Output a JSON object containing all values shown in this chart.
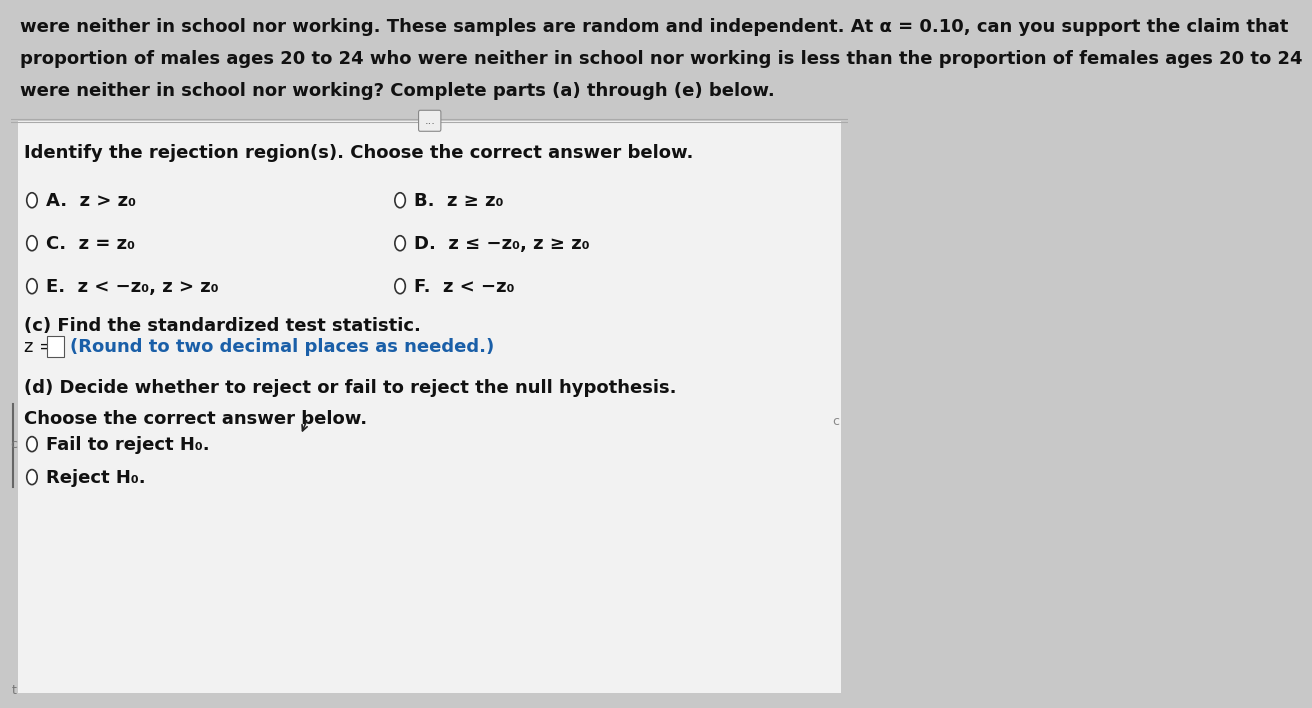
{
  "bg_color": "#c8c8c8",
  "white_area_color": "#f0f0f0",
  "header_bg": "#c8c8c8",
  "header_text": [
    "were neither in school nor working. These samples are random and independent. At α = 0.10, can you support the claim that",
    "proportion of males ages 20 to 24 who were neither in school nor working is less than the proportion of females ages 20 to 24",
    "were neither in school nor working? Complete parts (a) through (e) below."
  ],
  "section_label": "Identify the rejection region(s). Choose the correct answer below.",
  "options": [
    {
      "id": "A",
      "text": "z > z₀",
      "row": 0,
      "col": 0
    },
    {
      "id": "B",
      "text": "z ≥ z₀",
      "row": 0,
      "col": 1
    },
    {
      "id": "C",
      "text": "z = z₀",
      "row": 1,
      "col": 0
    },
    {
      "id": "D",
      "text": "z ≤ −z₀, z ≥ z₀",
      "row": 1,
      "col": 1
    },
    {
      "id": "E",
      "text": "z < −z₀, z > z₀",
      "row": 2,
      "col": 0
    },
    {
      "id": "F",
      "text": "z < −z₀",
      "row": 2,
      "col": 1
    }
  ],
  "part_c_label": "(c) Find the standardized test statistic.",
  "part_d_label": "(d) Decide whether to reject or fail to reject the null hypothesis.",
  "choose_label": "Choose the correct answer below.",
  "radio_options_d": [
    "Fail to reject H₀.",
    "Reject H₀."
  ],
  "divider_dots": "...",
  "round_note": "(Round to two decimal places as needed.)",
  "font_size_header": 13.0,
  "font_size_body": 13.0,
  "font_size_option": 13.0,
  "text_color": "#111111",
  "blue_color": "#1a5fa8",
  "circle_edge_color": "#333333",
  "header_line_color": "#aaaaaa",
  "divider_line_color": "#aaaaaa"
}
